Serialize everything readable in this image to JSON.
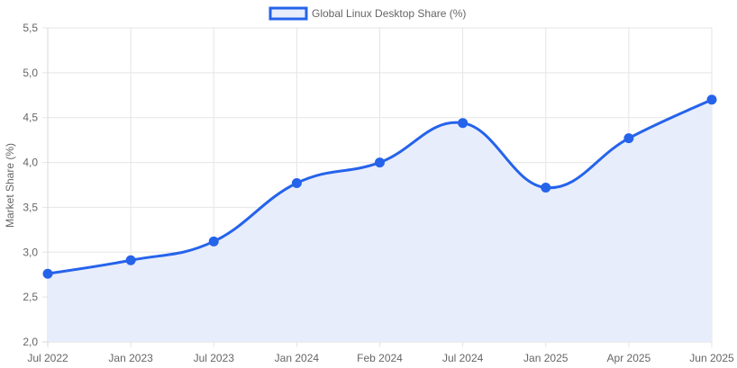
{
  "chart_data": {
    "type": "line",
    "categories": [
      "Jul 2022",
      "Jan 2023",
      "Jul 2023",
      "Jan 2024",
      "Feb 2024",
      "Jul 2024",
      "Jan 2025",
      "Apr 2025",
      "Jun 2025"
    ],
    "series": [
      {
        "name": "Global Linux Desktop Share (%)",
        "values": [
          2.76,
          2.91,
          3.12,
          3.77,
          4.0,
          4.44,
          3.72,
          4.27,
          4.7
        ],
        "color": "#2563eb",
        "fill": "#e8edfb"
      }
    ],
    "title": "",
    "xlabel": "",
    "ylabel": "Market Share (%)",
    "ylim": [
      2.0,
      5.5
    ],
    "yticks": [
      "2,0",
      "2,5",
      "3,0",
      "3,5",
      "4,0",
      "4,5",
      "5,0",
      "5,5"
    ],
    "grid": true,
    "legend": "top-center",
    "area_fill": true,
    "smooth": true
  }
}
